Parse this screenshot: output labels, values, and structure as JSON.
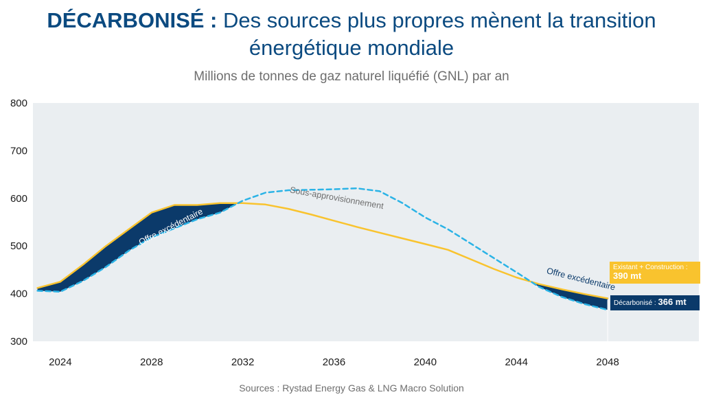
{
  "title": {
    "bold": "DÉCARBONISÉ :",
    "rest": "Des sources plus propres mènent la transition énergétique mondiale"
  },
  "subtitle": "Millions de tonnes de gaz naturel liquéfié (GNL) par an",
  "source": "Sources : Rystad Energy Gas & LNG Macro Solution",
  "chart_data": {
    "type": "area",
    "title": "DÉCARBONISÉ : Des sources plus propres mènent la transition énergétique mondiale",
    "subtitle": "Millions de tonnes de gaz naturel liquéfié (GNL) par an",
    "xlabel": "",
    "ylabel": "",
    "xlim": [
      2022.8,
      2052
    ],
    "ylim": [
      300,
      800
    ],
    "xticks": [
      2024,
      2028,
      2032,
      2036,
      2040,
      2044,
      2048
    ],
    "yticks": [
      300,
      400,
      500,
      600,
      700,
      800
    ],
    "grid": false,
    "series": [
      {
        "name": "Existant + Construction",
        "style": "solid",
        "color": "#f9c32e",
        "x": [
          2023,
          2024,
          2025,
          2026,
          2027,
          2028,
          2029,
          2030,
          2031,
          2032,
          2033,
          2034,
          2035,
          2036,
          2037,
          2038,
          2039,
          2040,
          2041,
          2042,
          2043,
          2044,
          2045,
          2046,
          2047,
          2048
        ],
        "y": [
          412,
          425,
          461,
          500,
          535,
          570,
          586,
          586,
          590,
          590,
          587,
          578,
          566,
          553,
          540,
          528,
          516,
          504,
          492,
          472,
          452,
          434,
          420,
          409,
          399,
          390
        ]
      },
      {
        "name": "Décarbonisé",
        "style": "dashed",
        "color": "#2bb3e6",
        "x": [
          2023,
          2024,
          2025,
          2026,
          2027,
          2028,
          2029,
          2030,
          2031,
          2032,
          2033,
          2034,
          2035,
          2036,
          2037,
          2038,
          2039,
          2040,
          2041,
          2042,
          2043,
          2044,
          2045,
          2046,
          2047,
          2048
        ],
        "y": [
          406,
          404,
          427,
          456,
          490,
          518,
          537,
          556,
          570,
          595,
          612,
          617,
          618,
          619,
          621,
          615,
          590,
          560,
          535,
          505,
          475,
          445,
          414,
          393,
          378,
          366
        ]
      }
    ],
    "annotations": [
      {
        "text": "Offre excédentaire",
        "x": 2028.9,
        "y": 535,
        "rotate": -27,
        "color": "#ffffff"
      },
      {
        "text": "Sous-approvisionnement",
        "x": 2036.1,
        "y": 595,
        "rotate": 10,
        "color": "#6e6e6e"
      },
      {
        "text": "Offre excédentaire",
        "x": 2046.8,
        "y": 425,
        "rotate": 14,
        "color": "#0b3a6a"
      }
    ],
    "end_labels": [
      {
        "label": "Existant + Construction : ",
        "value": "390 mt",
        "color": "#f9c32e"
      },
      {
        "label": "Décarbonisé : ",
        "value": "366 mt",
        "color": "#0b3a6a"
      }
    ],
    "fill_color": "#0b3a6a",
    "plot_background": "#eaeef1"
  }
}
